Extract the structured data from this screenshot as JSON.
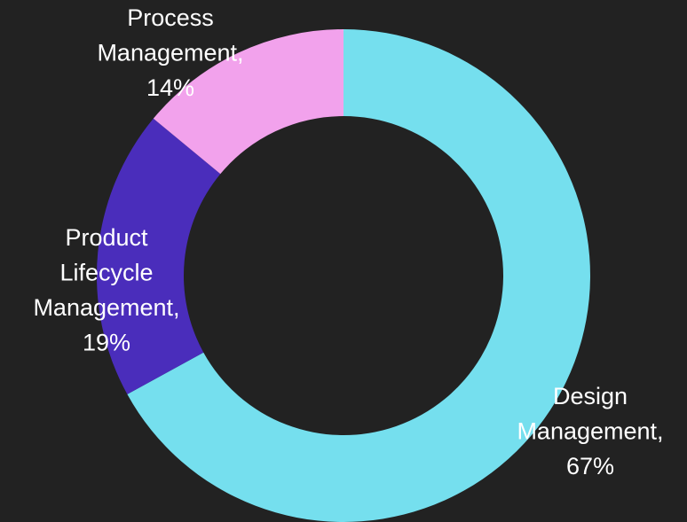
{
  "chart_data": {
    "type": "donut",
    "categories": [
      "Design Management,",
      "Product Lifecycle Management,",
      "Process Management,"
    ],
    "values": [
      67,
      19,
      14
    ],
    "value_labels": [
      "67%",
      "19%",
      "14%"
    ],
    "colors": [
      "#75dfee",
      "#4a2dbb",
      "#f2a2ec"
    ]
  }
}
